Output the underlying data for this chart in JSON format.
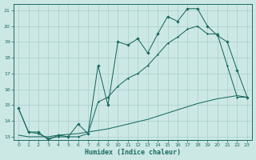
{
  "xlabel": "Humidex (Indice chaleur)",
  "ylabel": "",
  "xlim": [
    -0.5,
    23.5
  ],
  "ylim": [
    12.8,
    21.4
  ],
  "yticks": [
    13,
    14,
    15,
    16,
    17,
    18,
    19,
    20,
    21
  ],
  "xticks": [
    0,
    1,
    2,
    3,
    4,
    5,
    6,
    7,
    8,
    9,
    10,
    11,
    12,
    13,
    14,
    15,
    16,
    17,
    18,
    19,
    20,
    21,
    22,
    23
  ],
  "bg_color": "#cce8e5",
  "grid_color": "#aacfcc",
  "line_color": "#1b6b62",
  "line1_x": [
    0,
    1,
    2,
    3,
    4,
    5,
    6,
    7,
    8,
    9,
    10,
    11,
    12,
    13,
    14,
    15,
    16,
    17,
    18,
    19,
    20,
    21,
    22,
    23
  ],
  "line1_y": [
    14.8,
    13.3,
    13.3,
    12.8,
    13.1,
    13.0,
    13.8,
    13.2,
    17.5,
    15.0,
    19.0,
    18.8,
    19.2,
    18.3,
    19.5,
    20.6,
    20.3,
    21.1,
    21.1,
    20.0,
    19.4,
    19.0,
    17.2,
    15.5
  ],
  "line2_x": [
    0,
    1,
    2,
    3,
    4,
    5,
    6,
    7,
    8,
    9,
    10,
    11,
    12,
    13,
    14,
    15,
    16,
    17,
    18,
    19,
    20,
    21,
    22,
    23
  ],
  "line2_y": [
    14.8,
    13.3,
    13.2,
    12.9,
    13.0,
    13.0,
    13.0,
    13.2,
    15.2,
    15.5,
    16.2,
    16.7,
    17.0,
    17.5,
    18.2,
    18.9,
    19.3,
    19.8,
    20.0,
    19.5,
    19.5,
    17.5,
    15.5,
    15.5
  ],
  "line3_x": [
    0,
    1,
    2,
    3,
    4,
    5,
    6,
    7,
    8,
    9,
    10,
    11,
    12,
    13,
    14,
    15,
    16,
    17,
    18,
    19,
    20,
    21,
    22,
    23
  ],
  "line3_y": [
    13.1,
    13.0,
    13.0,
    13.0,
    13.1,
    13.15,
    13.2,
    13.3,
    13.4,
    13.5,
    13.65,
    13.8,
    13.95,
    14.1,
    14.3,
    14.5,
    14.7,
    14.9,
    15.1,
    15.25,
    15.4,
    15.5,
    15.6,
    15.5
  ]
}
